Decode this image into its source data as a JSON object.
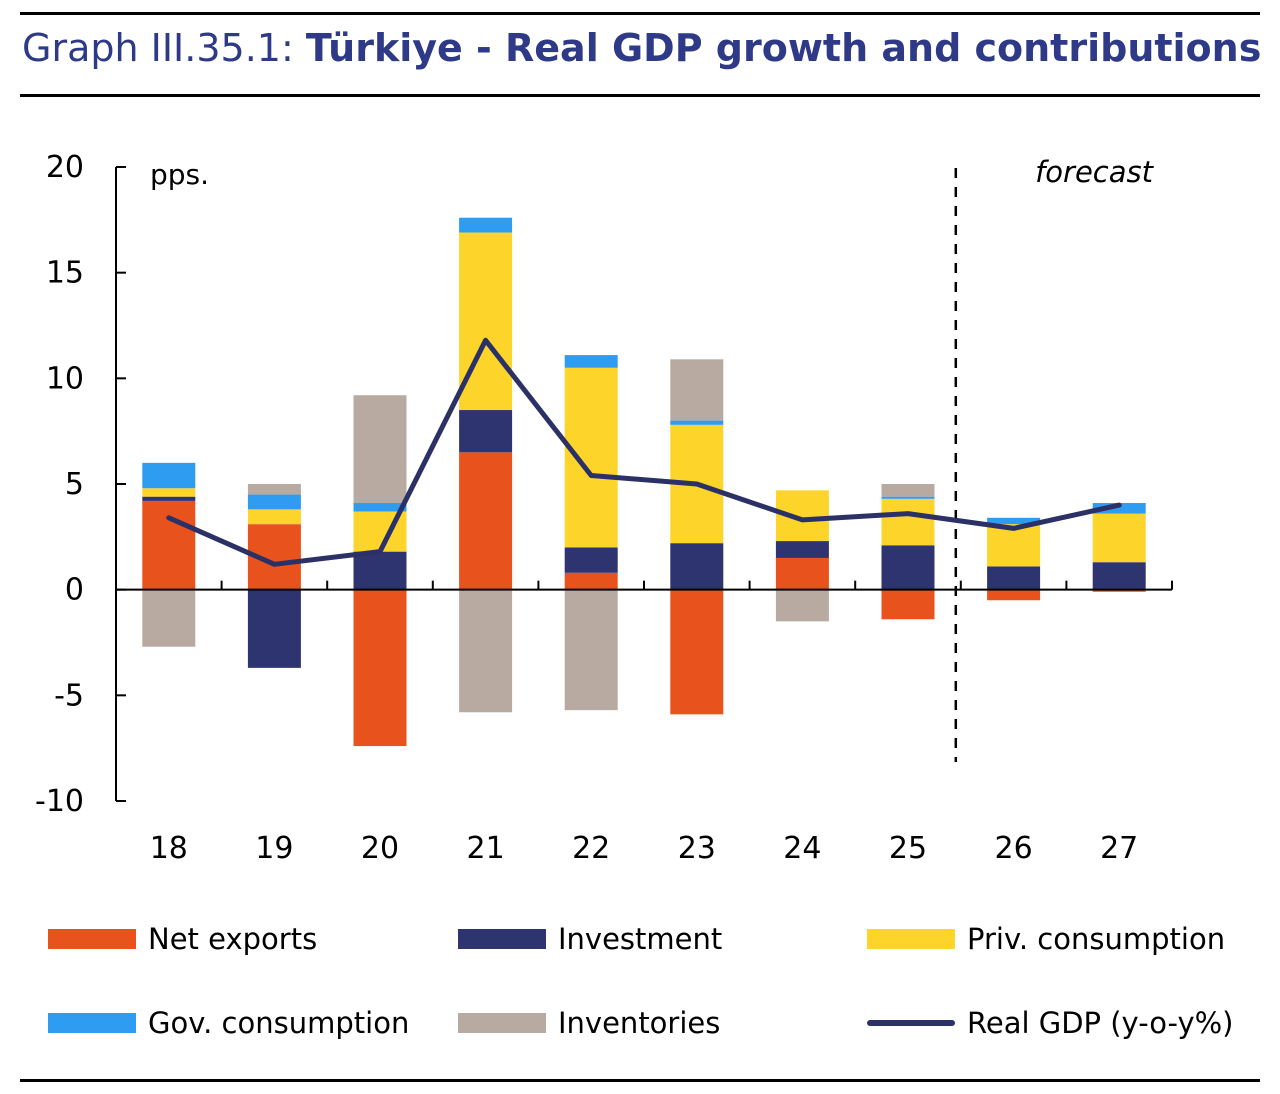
{
  "header": {
    "number": "Graph III.35.1:",
    "title": "Türkiye - Real GDP growth and contributions"
  },
  "chart_data": {
    "type": "bar",
    "stacked": true,
    "unit_label": "pps.",
    "annotation": "forecast",
    "forecast_from_index": 8,
    "categories": [
      "18",
      "19",
      "20",
      "21",
      "22",
      "23",
      "24",
      "25",
      "26",
      "27"
    ],
    "ylim": [
      -10,
      20
    ],
    "yticks": [
      -10,
      -5,
      0,
      5,
      10,
      15,
      20
    ],
    "series": [
      {
        "name": "Net exports",
        "color": "#e8531d",
        "values": [
          4.2,
          3.1,
          -7.4,
          6.5,
          0.8,
          -5.9,
          1.5,
          -1.4,
          -0.5,
          -0.1
        ]
      },
      {
        "name": "Investment",
        "color": "#2e3470",
        "values": [
          0.2,
          -3.7,
          1.8,
          2.0,
          1.2,
          2.2,
          0.8,
          2.1,
          1.1,
          1.3
        ]
      },
      {
        "name": "Priv. consumption",
        "color": "#fdd52a",
        "values": [
          0.4,
          0.7,
          1.9,
          8.4,
          8.5,
          5.6,
          2.4,
          2.2,
          2.0,
          2.3
        ]
      },
      {
        "name": "Gov. consumption",
        "color": "#2e9cf0",
        "values": [
          1.2,
          0.7,
          0.4,
          0.7,
          0.6,
          0.2,
          0.0,
          0.1,
          0.3,
          0.5
        ]
      },
      {
        "name": "Inventories",
        "color": "#b8aaa0",
        "values": [
          -2.7,
          0.5,
          5.1,
          -5.8,
          -5.7,
          2.9,
          -1.5,
          0.6,
          0.0,
          0.0
        ]
      }
    ],
    "line": {
      "name": "Real GDP (y-o-y%)",
      "color": "#2b3167",
      "values": [
        3.4,
        1.2,
        1.8,
        11.8,
        5.4,
        5.0,
        3.3,
        3.6,
        2.9,
        4.0
      ]
    }
  }
}
